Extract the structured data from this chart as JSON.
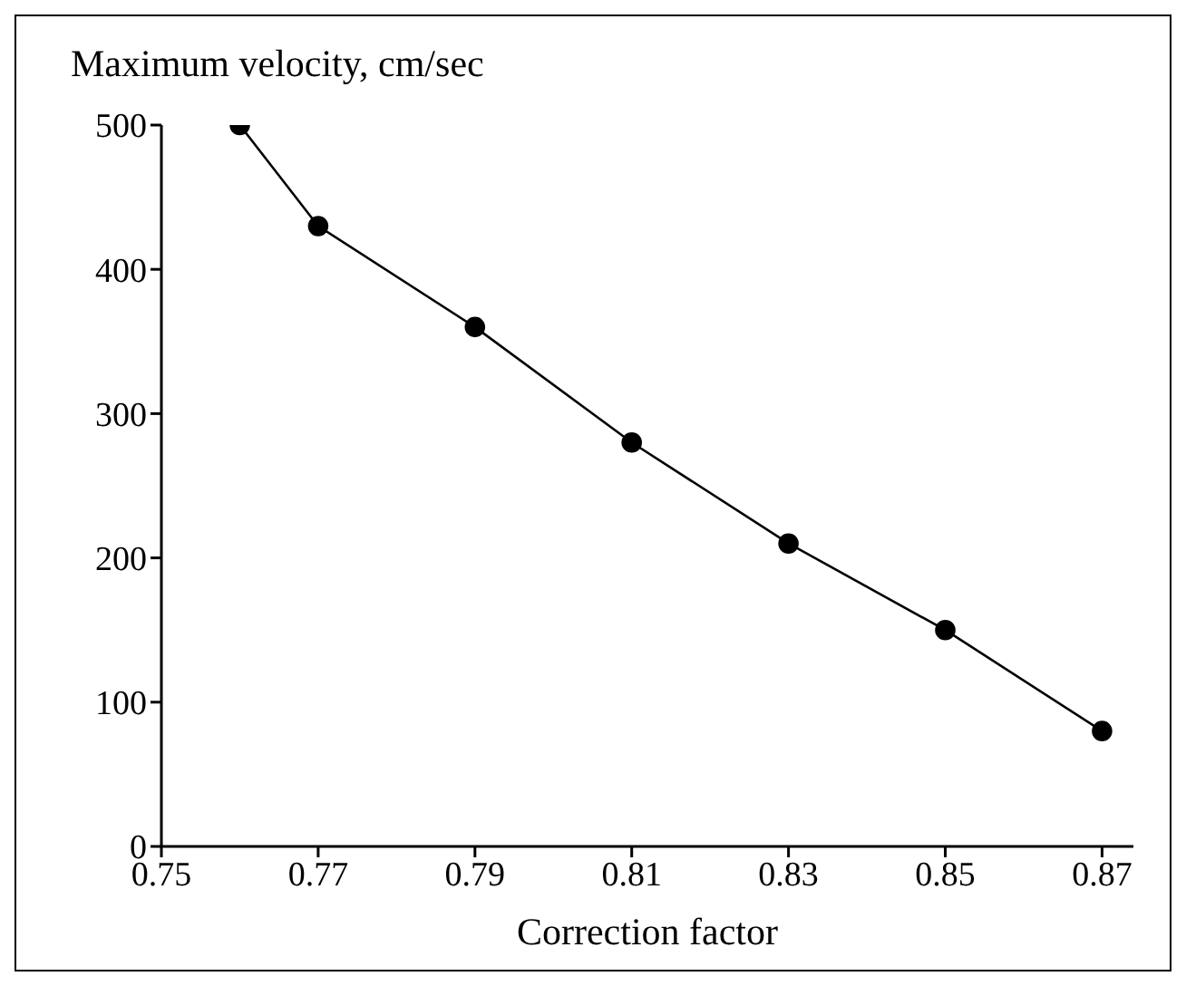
{
  "chart_data": {
    "type": "line",
    "xlabel": "Correction factor",
    "ylabel": "Maximum velocity, cm/sec",
    "x": [
      0.76,
      0.77,
      0.79,
      0.81,
      0.83,
      0.85,
      0.87
    ],
    "series": [
      {
        "color": "#000000",
        "values": [
          500,
          430,
          360,
          280,
          210,
          150,
          80
        ]
      }
    ],
    "xlim": [
      0.75,
      0.874
    ],
    "xticks": [
      0.75,
      0.77,
      0.79,
      0.81,
      0.83,
      0.85,
      0.87
    ],
    "ylim": [
      0,
      500
    ],
    "yticks": [
      0,
      100,
      200,
      300,
      400,
      500
    ],
    "marker": "circle",
    "line_style": "solid"
  }
}
